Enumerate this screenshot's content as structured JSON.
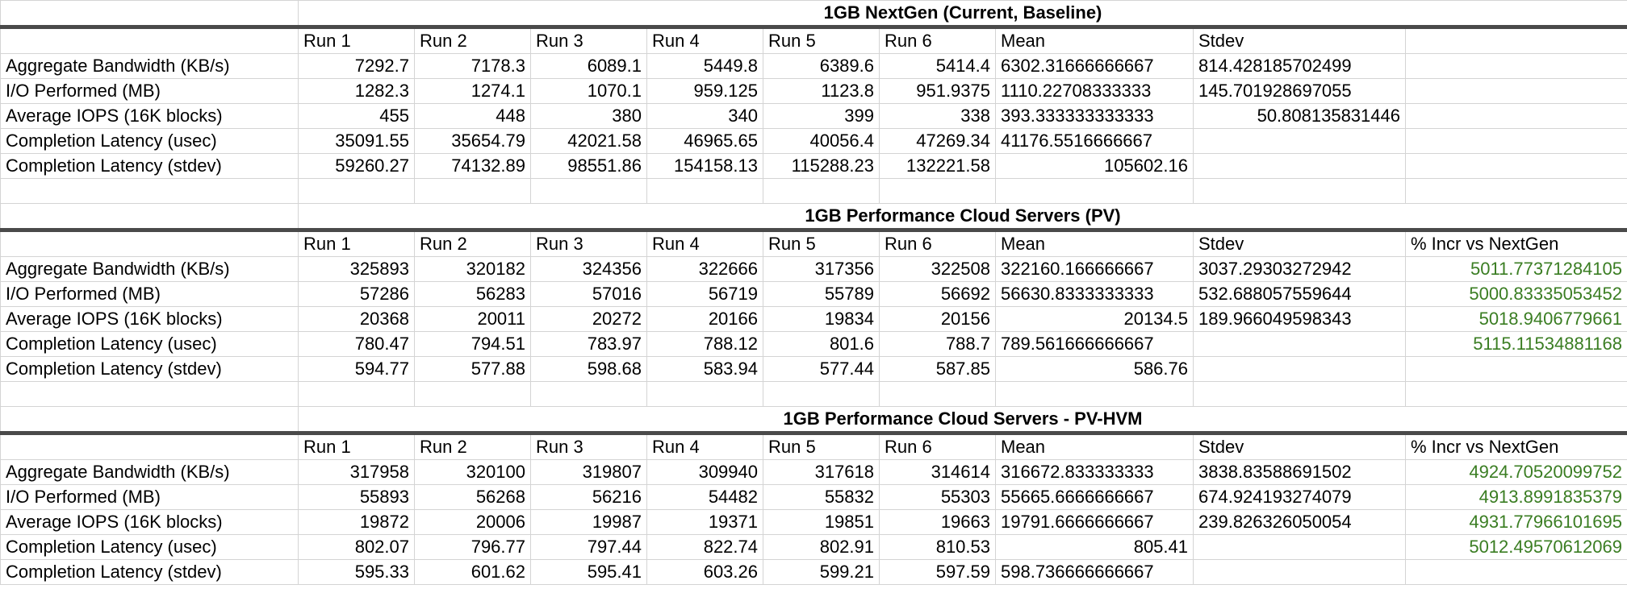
{
  "sections": [
    {
      "title": "1GB NextGen (Current, Baseline)",
      "headers": [
        "Run 1",
        "Run 2",
        "Run 3",
        "Run 4",
        "Run 5",
        "Run 6",
        "Mean",
        "Stdev",
        ""
      ],
      "rows": [
        {
          "label": "Aggregate Bandwidth (KB/s)",
          "values": [
            "7292.7",
            "7178.3",
            "6089.1",
            "5449.8",
            "6389.6",
            "5414.4"
          ],
          "mean": "6302.31666666667",
          "mean_align": "left",
          "stdev": "814.428185702499",
          "stdev_align": "left",
          "pct": ""
        },
        {
          "label": "I/O Performed (MB)",
          "values": [
            "1282.3",
            "1274.1",
            "1070.1",
            "959.125",
            "1123.8",
            "951.9375"
          ],
          "mean": "1110.22708333333",
          "mean_align": "left",
          "stdev": "145.701928697055",
          "stdev_align": "left",
          "pct": ""
        },
        {
          "label": "Average IOPS (16K blocks)",
          "values": [
            "455",
            "448",
            "380",
            "340",
            "399",
            "338"
          ],
          "mean": "393.333333333333",
          "mean_align": "left",
          "stdev": "50.808135831446",
          "stdev_align": "right",
          "pct": ""
        },
        {
          "label": "Completion Latency (usec)",
          "values": [
            "35091.55",
            "35654.79",
            "42021.58",
            "46965.65",
            "40056.4",
            "47269.34"
          ],
          "mean": "41176.5516666667",
          "mean_align": "left",
          "stdev": "",
          "stdev_align": "left",
          "pct": ""
        },
        {
          "label": "Completion Latency (stdev)",
          "values": [
            "59260.27",
            "74132.89",
            "98551.86",
            "154158.13",
            "115288.23",
            "132221.58"
          ],
          "mean": "105602.16",
          "mean_align": "right",
          "stdev": "",
          "stdev_align": "left",
          "pct": ""
        }
      ]
    },
    {
      "title": "1GB Performance Cloud Servers (PV)",
      "headers": [
        "Run 1",
        "Run 2",
        "Run 3",
        "Run 4",
        "Run 5",
        "Run 6",
        "Mean",
        "Stdev",
        "% Incr vs NextGen"
      ],
      "rows": [
        {
          "label": "Aggregate Bandwidth (KB/s)",
          "values": [
            "325893",
            "320182",
            "324356",
            "322666",
            "317356",
            "322508"
          ],
          "mean": "322160.166666667",
          "mean_align": "left",
          "stdev": "3037.29303272942",
          "stdev_align": "left",
          "pct": "5011.77371284105"
        },
        {
          "label": "I/O Performed (MB)",
          "values": [
            "57286",
            "56283",
            "57016",
            "56719",
            "55789",
            "56692"
          ],
          "mean": "56630.8333333333",
          "mean_align": "left",
          "stdev": "532.688057559644",
          "stdev_align": "left",
          "pct": "5000.83335053452"
        },
        {
          "label": "Average IOPS (16K blocks)",
          "values": [
            "20368",
            "20011",
            "20272",
            "20166",
            "19834",
            "20156"
          ],
          "mean": "20134.5",
          "mean_align": "right",
          "stdev": "189.966049598343",
          "stdev_align": "left",
          "pct": "5018.9406779661"
        },
        {
          "label": "Completion Latency (usec)",
          "values": [
            "780.47",
            "794.51",
            "783.97",
            "788.12",
            "801.6",
            "788.7"
          ],
          "mean": "789.561666666667",
          "mean_align": "left",
          "stdev": "",
          "stdev_align": "left",
          "pct": "5115.11534881168"
        },
        {
          "label": "Completion Latency (stdev)",
          "values": [
            "594.77",
            "577.88",
            "598.68",
            "583.94",
            "577.44",
            "587.85"
          ],
          "mean": "586.76",
          "mean_align": "right",
          "stdev": "",
          "stdev_align": "left",
          "pct": ""
        }
      ]
    },
    {
      "title": "1GB Performance Cloud Servers - PV-HVM",
      "headers": [
        "Run 1",
        "Run 2",
        "Run 3",
        "Run 4",
        "Run 5",
        "Run 6",
        "Mean",
        "Stdev",
        "% Incr vs NextGen"
      ],
      "rows": [
        {
          "label": "Aggregate Bandwidth (KB/s)",
          "values": [
            "317958",
            "320100",
            "319807",
            "309940",
            "317618",
            "314614"
          ],
          "mean": "316672.833333333",
          "mean_align": "left",
          "stdev": "3838.83588691502",
          "stdev_align": "left",
          "pct": "4924.70520099752"
        },
        {
          "label": "I/O Performed (MB)",
          "values": [
            "55893",
            "56268",
            "56216",
            "54482",
            "55832",
            "55303"
          ],
          "mean": "55665.6666666667",
          "mean_align": "left",
          "stdev": "674.924193274079",
          "stdev_align": "left",
          "pct": "4913.8991835379"
        },
        {
          "label": "Average IOPS (16K blocks)",
          "values": [
            "19872",
            "20006",
            "19987",
            "19371",
            "19851",
            "19663"
          ],
          "mean": "19791.6666666667",
          "mean_align": "left",
          "stdev": "239.826326050054",
          "stdev_align": "left",
          "pct": "4931.77966101695"
        },
        {
          "label": "Completion Latency (usec)",
          "values": [
            "802.07",
            "796.77",
            "797.44",
            "822.74",
            "802.91",
            "810.53"
          ],
          "mean": "805.41",
          "mean_align": "right",
          "stdev": "",
          "stdev_align": "left",
          "pct": "5012.49570612069"
        },
        {
          "label": "Completion Latency (stdev)",
          "values": [
            "595.33",
            "601.62",
            "595.41",
            "603.26",
            "599.21",
            "597.59"
          ],
          "mean": "598.736666666667",
          "mean_align": "left",
          "stdev": "",
          "stdev_align": "left",
          "pct": ""
        }
      ]
    }
  ],
  "colors": {
    "pct_text": "#3a7d22",
    "grid_line": "#d4d4d4",
    "thick_rule": "#4a4a4a"
  }
}
